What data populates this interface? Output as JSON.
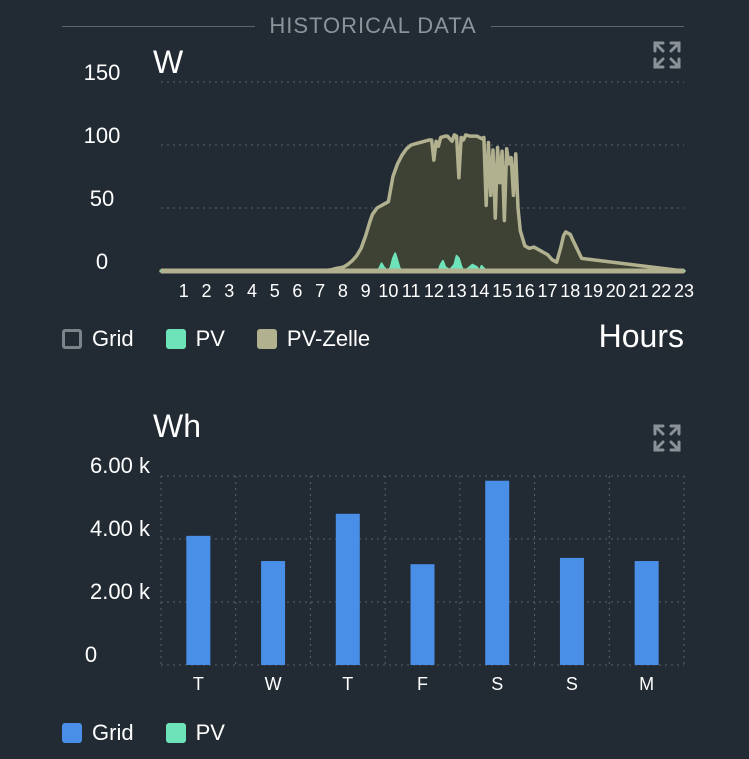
{
  "header": {
    "title": "HISTORICAL DATA"
  },
  "icons": {
    "expand": "expand-arrows-icon"
  },
  "colors": {
    "background": "#222a33",
    "grid_line": "#59616a",
    "pv_zelle": "#b1b08f",
    "pv_zelle_fill": "#3d4234",
    "pv": "#6ee3b9",
    "grid_bar": "#4a8fe7",
    "grid_outline": "#7c838b"
  },
  "power_chart": {
    "unit": "W",
    "x_axis_label": "Hours",
    "legend": [
      {
        "label": "Grid",
        "style": "outline"
      },
      {
        "label": "PV",
        "style": "filled-pv"
      },
      {
        "label": "PV-Zelle",
        "style": "filled-pvzelle"
      }
    ],
    "chart_data": {
      "type": "area",
      "y_ticks": [
        "150",
        "100",
        "50",
        "0"
      ],
      "y_tick_values": [
        150,
        100,
        50,
        0
      ],
      "ylim": [
        0,
        150
      ],
      "xlim": [
        0,
        23
      ],
      "x_ticks": [
        "1",
        "2",
        "3",
        "4",
        "5",
        "6",
        "7",
        "8",
        "9",
        "10",
        "11",
        "12",
        "13",
        "14",
        "15",
        "16",
        "17",
        "18",
        "19",
        "20",
        "21",
        "22",
        "23"
      ],
      "series": [
        {
          "name": "PV-Zelle",
          "x": [
            0,
            6.5,
            7,
            7.5,
            7.7,
            8,
            8.2,
            8.4,
            8.6,
            8.8,
            9,
            9.2,
            9.3,
            9.5,
            9.7,
            10,
            10.2,
            10.4,
            10.6,
            10.8,
            11,
            11.2,
            11.4,
            11.6,
            11.8,
            11.9,
            12,
            12.1,
            12.2,
            12.3,
            12.5,
            12.6,
            12.7,
            12.8,
            12.9,
            13,
            13.1,
            13.2,
            13.3,
            13.4,
            13.6,
            13.8,
            13.9,
            14,
            14.1,
            14.2,
            14.3,
            14.4,
            14.5,
            14.6,
            14.7,
            14.8,
            14.9,
            15,
            15.1,
            15.2,
            15.3,
            15.4,
            15.5,
            15.6,
            15.7,
            15.8,
            16,
            16.2,
            16.4,
            16.6,
            16.8,
            17,
            17.2,
            17.4,
            17.6,
            17.7,
            17.8,
            17.9,
            18,
            18.1,
            18.5,
            23
          ],
          "values": [
            0,
            0,
            0,
            1,
            2,
            3,
            5,
            8,
            12,
            18,
            28,
            40,
            45,
            50,
            52,
            55,
            75,
            85,
            92,
            97,
            100,
            101,
            102,
            103,
            104,
            104,
            88,
            103,
            99,
            106,
            107,
            107,
            105,
            103,
            108,
            107,
            74,
            106,
            104,
            108,
            107,
            107,
            107,
            106,
            105,
            106,
            52,
            102,
            60,
            96,
            42,
            98,
            70,
            95,
            40,
            97,
            85,
            90,
            60,
            93,
            50,
            32,
            20,
            18,
            19,
            17,
            15,
            13,
            9,
            7,
            20,
            28,
            31,
            30,
            29,
            25,
            10,
            0
          ]
        },
        {
          "name": "PV",
          "x": [
            0,
            9.5,
            9.6,
            9.7,
            9.8,
            9.9,
            10,
            10.1,
            10.2,
            10.3,
            10.4,
            10.5,
            10.6,
            10.7,
            10.8,
            11,
            12.2,
            12.3,
            12.4,
            12.5,
            12.7,
            12.9,
            13,
            13.1,
            13.2,
            13.3,
            13.5,
            13.7,
            13.9,
            14,
            14.1,
            14.2,
            14.3,
            14.5,
            16.5,
            23
          ],
          "values": [
            0,
            0,
            2,
            6,
            3,
            1,
            0,
            3,
            10,
            14,
            8,
            2,
            0,
            1,
            0,
            0,
            0,
            5,
            8,
            3,
            1,
            5,
            12,
            10,
            4,
            0,
            2,
            5,
            3,
            0,
            4,
            2,
            0,
            0,
            0,
            0
          ]
        }
      ]
    }
  },
  "energy_chart": {
    "unit": "Wh",
    "legend": [
      {
        "label": "Grid",
        "style": "filled-grid"
      },
      {
        "label": "PV",
        "style": "filled-pv"
      }
    ],
    "chart_data": {
      "type": "bar",
      "categories": [
        "T",
        "W",
        "T",
        "F",
        "S",
        "S",
        "M"
      ],
      "series": [
        {
          "name": "Grid",
          "values": [
            4100,
            3300,
            4800,
            3200,
            5850,
            3400,
            3300
          ]
        }
      ],
      "y_ticks": [
        "6.00 k",
        "4.00 k",
        "2.00 k",
        "0"
      ],
      "y_tick_values": [
        6000,
        4000,
        2000,
        0
      ],
      "ylim": [
        0,
        6000
      ]
    }
  }
}
